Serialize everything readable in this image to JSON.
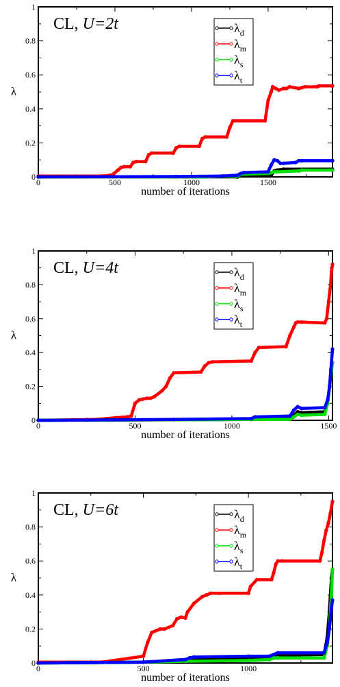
{
  "chart_data": [
    {
      "type": "line",
      "title_prefix": "CL, ",
      "title_var": "U",
      "title_value": "=2t",
      "xlabel": "number of iterations",
      "ylabel": "λ",
      "xlim": [
        0,
        1920
      ],
      "ylim": [
        0,
        1
      ],
      "xticks": [
        "0",
        "500",
        "1000",
        "1500"
      ],
      "yticks": [
        "0",
        "0.2",
        "0.4",
        "0.6",
        "0.8",
        "1"
      ],
      "legend_position": "top-right",
      "series": [
        {
          "name": "λ",
          "sub": "d",
          "color": "#000000",
          "x": [
            0,
            1300,
            1320,
            1340,
            1520,
            1540,
            1560,
            1600,
            1920
          ],
          "y": [
            0,
            0,
            0.008,
            0.008,
            0.01,
            0.035,
            0.04,
            0.045,
            0.045
          ]
        },
        {
          "name": "λ",
          "sub": "m",
          "color": "#ff0000",
          "x": [
            0,
            420,
            470,
            480,
            520,
            540,
            560,
            600,
            620,
            640,
            700,
            720,
            740,
            880,
            900,
            920,
            1050,
            1070,
            1090,
            1230,
            1250,
            1270,
            1480,
            1500,
            1520,
            1530,
            1550,
            1570,
            1600,
            1620,
            1640,
            1700,
            1720,
            1740,
            1820,
            1830,
            1920
          ],
          "y": [
            0.005,
            0.005,
            0.01,
            0.01,
            0.04,
            0.055,
            0.06,
            0.06,
            0.085,
            0.09,
            0.09,
            0.13,
            0.14,
            0.14,
            0.17,
            0.18,
            0.18,
            0.225,
            0.235,
            0.235,
            0.29,
            0.33,
            0.33,
            0.45,
            0.5,
            0.53,
            0.52,
            0.51,
            0.52,
            0.52,
            0.53,
            0.52,
            0.525,
            0.53,
            0.53,
            0.535,
            0.535
          ]
        },
        {
          "name": "λ",
          "sub": "s",
          "color": "#00dd00",
          "x": [
            0,
            1100,
            1150,
            1300,
            1320,
            1500,
            1520,
            1540,
            1560,
            1700,
            1720,
            1920
          ],
          "y": [
            0,
            0,
            0.003,
            0.005,
            0.015,
            0.02,
            0.025,
            0.03,
            0.03,
            0.035,
            0.04,
            0.04
          ]
        },
        {
          "name": "λ",
          "sub": "t",
          "color": "#0000ff",
          "x": [
            0,
            900,
            1200,
            1300,
            1320,
            1340,
            1500,
            1520,
            1540,
            1560,
            1580,
            1600,
            1680,
            1700,
            1720,
            1920
          ],
          "y": [
            0,
            0.002,
            0.005,
            0.01,
            0.02,
            0.025,
            0.03,
            0.07,
            0.1,
            0.095,
            0.08,
            0.08,
            0.085,
            0.095,
            0.095,
            0.095
          ]
        }
      ]
    },
    {
      "type": "line",
      "title_prefix": "CL, ",
      "title_var": "U",
      "title_value": "=4t",
      "xlabel": "number of iterations",
      "ylabel": "λ",
      "xlim": [
        0,
        1520
      ],
      "ylim": [
        0,
        1
      ],
      "xticks": [
        "0",
        "500",
        "1000",
        "1500"
      ],
      "yticks": [
        "0",
        "0.2",
        "0.4",
        "0.6",
        "0.8",
        "1"
      ],
      "legend_position": "top-right",
      "series": [
        {
          "name": "λ",
          "sub": "d",
          "color": "#000000",
          "x": [
            0,
            1100,
            1120,
            1300,
            1320,
            1340,
            1360,
            1480,
            1495,
            1505,
            1512,
            1520
          ],
          "y": [
            0,
            0.005,
            0.01,
            0.012,
            0.03,
            0.05,
            0.045,
            0.05,
            0.1,
            0.2,
            0.3,
            0.34
          ]
        },
        {
          "name": "λ",
          "sub": "m",
          "color": "#ff0000",
          "x": [
            0,
            300,
            400,
            460,
            480,
            500,
            520,
            540,
            560,
            580,
            600,
            640,
            660,
            680,
            700,
            840,
            860,
            880,
            900,
            1100,
            1120,
            1140,
            1280,
            1300,
            1320,
            1330,
            1340,
            1360,
            1480,
            1490,
            1500,
            1510,
            1515,
            1520
          ],
          "y": [
            0,
            0.005,
            0.015,
            0.02,
            0.025,
            0.1,
            0.12,
            0.125,
            0.13,
            0.13,
            0.14,
            0.175,
            0.2,
            0.25,
            0.28,
            0.285,
            0.32,
            0.34,
            0.345,
            0.35,
            0.4,
            0.43,
            0.435,
            0.5,
            0.55,
            0.575,
            0.58,
            0.58,
            0.575,
            0.6,
            0.7,
            0.8,
            0.88,
            0.92
          ]
        },
        {
          "name": "λ",
          "sub": "s",
          "color": "#00dd00",
          "x": [
            0,
            1100,
            1300,
            1320,
            1340,
            1360,
            1480,
            1495,
            1505,
            1520
          ],
          "y": [
            0,
            0.005,
            0.005,
            0.02,
            0.035,
            0.03,
            0.035,
            0.1,
            0.2,
            0.34
          ]
        },
        {
          "name": "λ",
          "sub": "t",
          "color": "#0000ff",
          "x": [
            0,
            700,
            1100,
            1120,
            1300,
            1320,
            1340,
            1360,
            1480,
            1495,
            1505,
            1512,
            1520
          ],
          "y": [
            0,
            0.005,
            0.01,
            0.02,
            0.025,
            0.06,
            0.08,
            0.07,
            0.075,
            0.12,
            0.2,
            0.3,
            0.42
          ]
        }
      ]
    },
    {
      "type": "line",
      "title_prefix": "CL, ",
      "title_var": "U",
      "title_value": "=6t",
      "xlabel": "number of iterations",
      "ylabel": "λ",
      "xlim": [
        0,
        1400
      ],
      "ylim": [
        0,
        1
      ],
      "xticks": [
        "0",
        "500",
        "1000"
      ],
      "yticks": [
        "0",
        "0.2",
        "0.4",
        "0.6",
        "0.8",
        "1"
      ],
      "legend_position": "top-right",
      "series": [
        {
          "name": "λ",
          "sub": "d",
          "color": "#000000",
          "x": [
            0,
            500,
            700,
            1100,
            1120,
            1140,
            1360,
            1375,
            1385,
            1395,
            1400
          ],
          "y": [
            0,
            0.005,
            0.02,
            0.03,
            0.04,
            0.045,
            0.05,
            0.15,
            0.3,
            0.5,
            0.55
          ]
        },
        {
          "name": "λ",
          "sub": "m",
          "color": "#ff0000",
          "x": [
            0,
            300,
            500,
            520,
            540,
            560,
            580,
            600,
            640,
            660,
            680,
            700,
            710,
            740,
            780,
            800,
            820,
            860,
            1000,
            1010,
            1040,
            1110,
            1120,
            1130,
            1140,
            1160,
            1340,
            1350,
            1360,
            1370,
            1380,
            1390,
            1400
          ],
          "y": [
            0.005,
            0.005,
            0.04,
            0.12,
            0.18,
            0.19,
            0.2,
            0.2,
            0.22,
            0.26,
            0.27,
            0.265,
            0.3,
            0.35,
            0.39,
            0.4,
            0.41,
            0.41,
            0.41,
            0.45,
            0.49,
            0.49,
            0.53,
            0.58,
            0.6,
            0.6,
            0.6,
            0.65,
            0.72,
            0.78,
            0.82,
            0.88,
            0.95
          ]
        },
        {
          "name": "λ",
          "sub": "s",
          "color": "#00dd00",
          "x": [
            0,
            500,
            700,
            1000,
            1100,
            1120,
            1140,
            1360,
            1375,
            1385,
            1395,
            1400
          ],
          "y": [
            0,
            0.005,
            0.01,
            0.015,
            0.02,
            0.03,
            0.03,
            0.03,
            0.1,
            0.2,
            0.4,
            0.55
          ]
        },
        {
          "name": "λ",
          "sub": "t",
          "color": "#0000ff",
          "x": [
            0,
            500,
            700,
            720,
            740,
            1000,
            1100,
            1120,
            1140,
            1360,
            1375,
            1385,
            1395,
            1400
          ],
          "y": [
            0,
            0.005,
            0.02,
            0.03,
            0.035,
            0.04,
            0.04,
            0.05,
            0.06,
            0.06,
            0.12,
            0.2,
            0.32,
            0.37
          ]
        }
      ]
    }
  ]
}
